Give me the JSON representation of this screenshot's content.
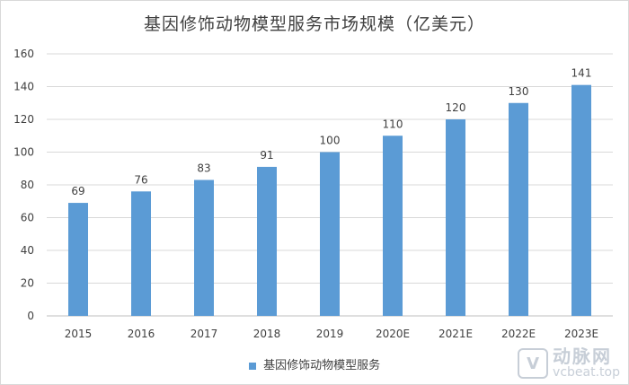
{
  "chart_data": {
    "type": "bar",
    "title": "基因修饰动物模型服务市场规模（亿美元）",
    "categories": [
      "2015",
      "2016",
      "2017",
      "2018",
      "2019",
      "2020E",
      "2021E",
      "2022E",
      "2023E"
    ],
    "series": [
      {
        "name": "基因修饰动物模型服务",
        "values": [
          69,
          76,
          83,
          91,
          100,
          110,
          120,
          130,
          141
        ],
        "color": "#5b9bd5"
      }
    ],
    "ylim": [
      0,
      160
    ],
    "yticks": [
      0,
      20,
      40,
      60,
      80,
      100,
      120,
      140,
      160
    ],
    "grid": true,
    "legend_position": "bottom"
  },
  "watermark": {
    "logo": "V",
    "name": "动脉网",
    "url": "vcbeat.top"
  }
}
